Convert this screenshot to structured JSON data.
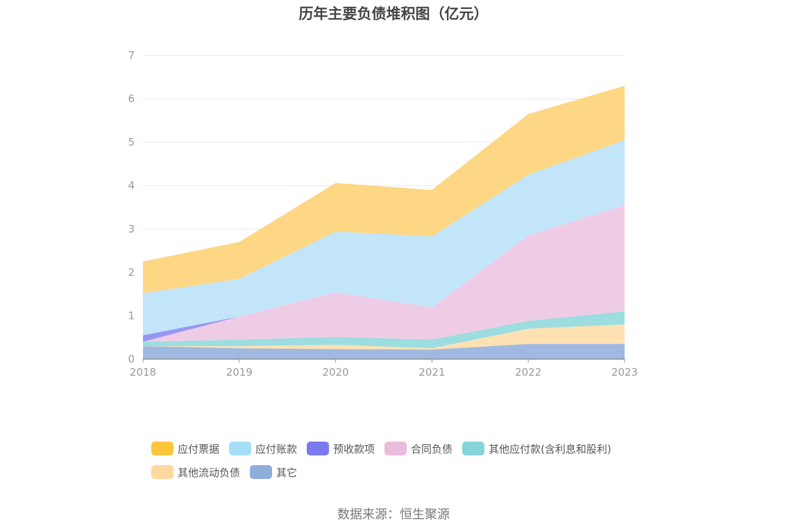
{
  "chart_data": {
    "type": "area",
    "stacked": true,
    "title": "历年主要负债堆积图（亿元）",
    "source": "数据来源：恒生聚源",
    "x": [
      "2018",
      "2019",
      "2020",
      "2021",
      "2022",
      "2023"
    ],
    "ylim": [
      0,
      7
    ],
    "yticks": [
      "0",
      "1",
      "2",
      "3",
      "4",
      "5",
      "6",
      "7"
    ],
    "grid": true,
    "legend_position": "bottom",
    "series": [
      {
        "name": "其它",
        "color": "#8FADDB",
        "values": [
          0.3,
          0.25,
          0.23,
          0.22,
          0.35,
          0.35
        ]
      },
      {
        "name": "其他流动负债",
        "color": "#FDDCA5",
        "values": [
          0.0,
          0.05,
          0.1,
          0.03,
          0.35,
          0.45
        ]
      },
      {
        "name": "其他应付款(含利息和股利)",
        "color": "#8BD7DB",
        "values": [
          0.1,
          0.15,
          0.18,
          0.2,
          0.18,
          0.3
        ]
      },
      {
        "name": "合同负债",
        "color": "#ECC3E0",
        "values": [
          0.0,
          0.53,
          1.03,
          0.74,
          1.97,
          2.45
        ]
      },
      {
        "name": "预收款项",
        "color": "#8585F0",
        "values": [
          0.15,
          0.0,
          0.0,
          0.0,
          0.0,
          0.0
        ]
      },
      {
        "name": "应付账款",
        "color": "#B7E1F8",
        "values": [
          0.97,
          0.87,
          1.4,
          1.64,
          1.4,
          1.5
        ]
      },
      {
        "name": "应付票据",
        "color": "#FDD06F",
        "values": [
          0.73,
          0.85,
          1.12,
          1.07,
          1.4,
          1.25
        ]
      }
    ],
    "legend": [
      {
        "name": "应付票据",
        "color": "#FFC53D"
      },
      {
        "name": "应付账款",
        "color": "#A6DEF9"
      },
      {
        "name": "预收款项",
        "color": "#7A7AF0"
      },
      {
        "name": "合同负债",
        "color": "#EABCDC"
      },
      {
        "name": "其他应付款(含利息和股利)",
        "color": "#86D6D9"
      },
      {
        "name": "其他流动负债",
        "color": "#FDD8A0"
      },
      {
        "name": "其它",
        "color": "#8FADDB"
      }
    ]
  }
}
